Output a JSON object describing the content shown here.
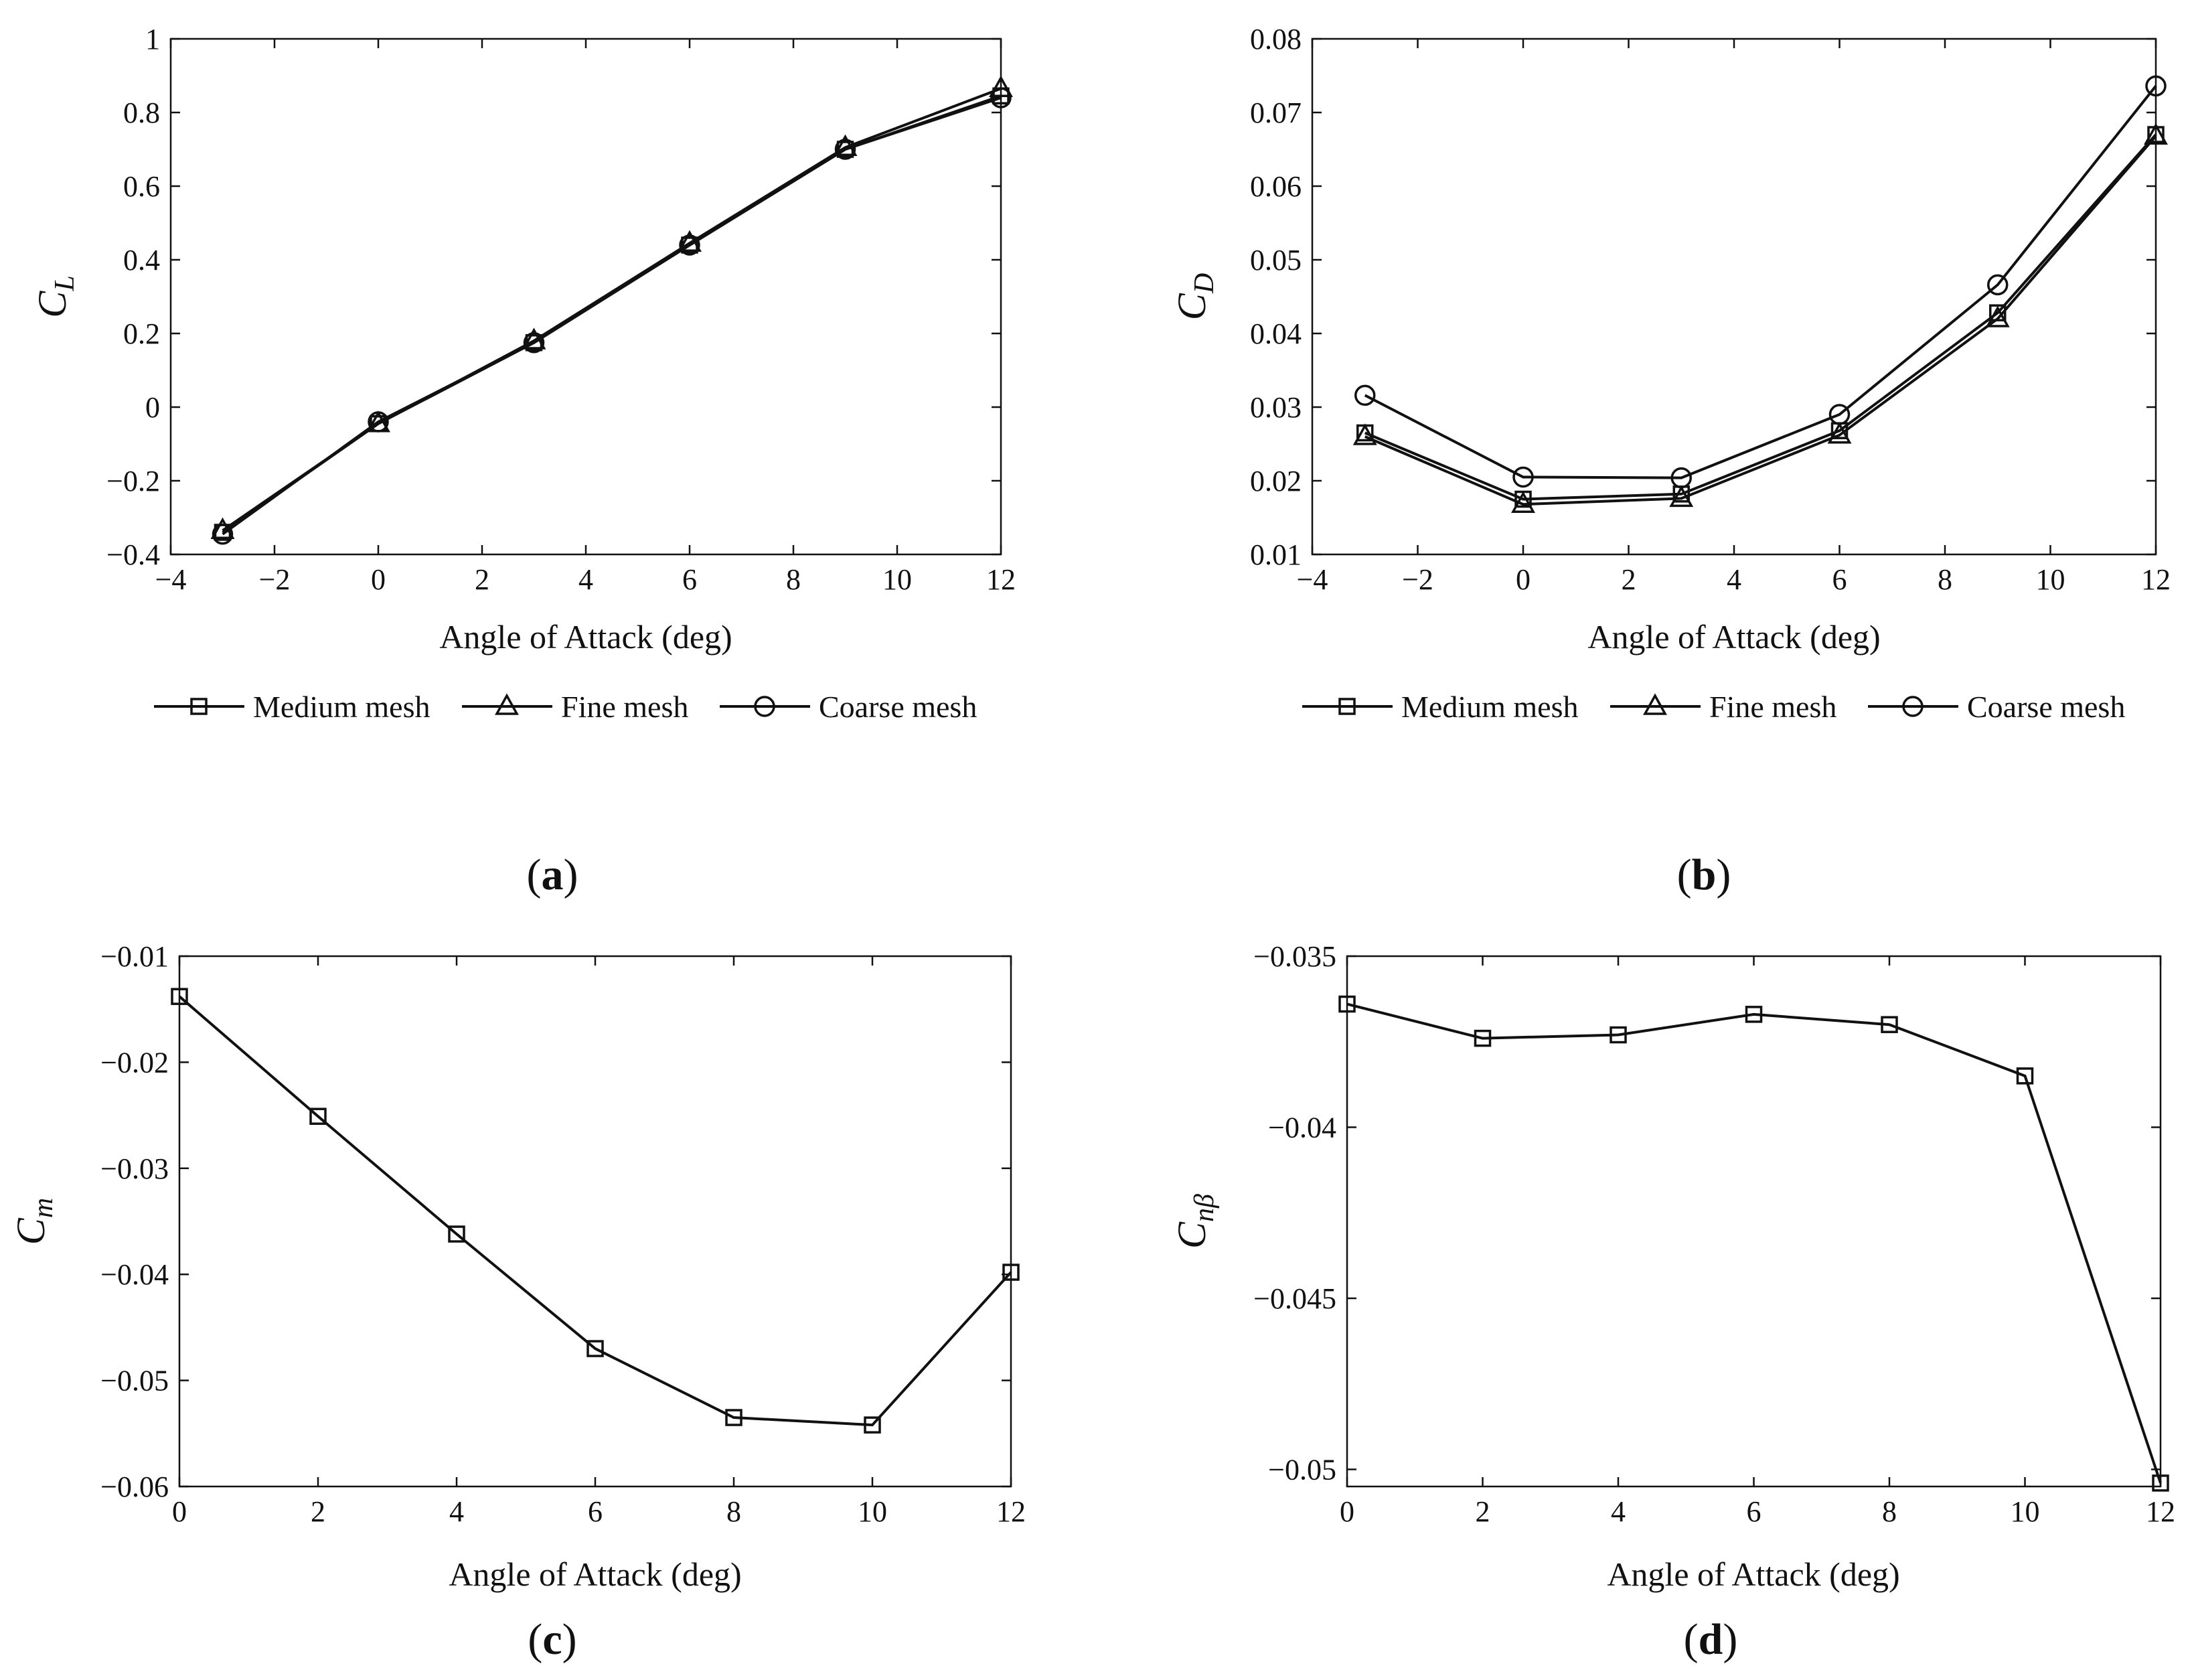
{
  "figure": {
    "panels": [
      {
        "label": "a"
      },
      {
        "label": "b"
      },
      {
        "label": "c"
      },
      {
        "label": "d"
      }
    ]
  },
  "chart_data": [
    {
      "id": "a",
      "type": "line",
      "xlabel": "Angle of Attack (deg)",
      "ylabel": {
        "symbol": "C",
        "subscript": "L"
      },
      "xlim": [
        -4,
        12
      ],
      "ylim": [
        -0.4,
        1
      ],
      "xticks": [
        -4,
        -2,
        0,
        2,
        4,
        6,
        8,
        10,
        12
      ],
      "yticks": [
        -0.4,
        -0.2,
        0,
        0.2,
        0.4,
        0.6,
        0.8,
        1
      ],
      "xtick_labels": [
        "−4",
        "−2",
        "0",
        "2",
        "4",
        "6",
        "8",
        "10",
        "12"
      ],
      "ytick_labels": [
        "−0.4",
        "−0.2",
        "0",
        "0.2",
        "0.4",
        "0.6",
        "0.8",
        "1"
      ],
      "x": [
        -3,
        0,
        3,
        6,
        9,
        12
      ],
      "series": [
        {
          "name": "Medium mesh",
          "marker": "square",
          "values": [
            -0.34,
            -0.045,
            0.175,
            0.44,
            0.7,
            0.845
          ]
        },
        {
          "name": "Fine mesh",
          "marker": "triangle",
          "values": [
            -0.335,
            -0.045,
            0.18,
            0.445,
            0.705,
            0.865
          ]
        },
        {
          "name": "Coarse mesh",
          "marker": "circle",
          "values": [
            -0.345,
            -0.04,
            0.175,
            0.44,
            0.7,
            0.84
          ]
        }
      ],
      "legend_position": "below"
    },
    {
      "id": "b",
      "type": "line",
      "xlabel": "Angle of Attack (deg)",
      "ylabel": {
        "symbol": "C",
        "subscript": "D"
      },
      "xlim": [
        -4,
        12
      ],
      "ylim": [
        0.01,
        0.08
      ],
      "xticks": [
        -4,
        -2,
        0,
        2,
        4,
        6,
        8,
        10,
        12
      ],
      "yticks": [
        0.01,
        0.02,
        0.03,
        0.04,
        0.05,
        0.06,
        0.07,
        0.08
      ],
      "xtick_labels": [
        "−4",
        "−2",
        "0",
        "2",
        "4",
        "6",
        "8",
        "10",
        "12"
      ],
      "ytick_labels": [
        "0.01",
        "0.02",
        "0.03",
        "0.04",
        "0.05",
        "0.06",
        "0.07",
        "0.08"
      ],
      "x": [
        -3,
        0,
        3,
        6,
        9,
        12
      ],
      "series": [
        {
          "name": "Medium mesh",
          "marker": "square",
          "values": [
            0.0265,
            0.0175,
            0.0182,
            0.0268,
            0.0428,
            0.067
          ]
        },
        {
          "name": "Fine mesh",
          "marker": "triangle",
          "values": [
            0.026,
            0.0168,
            0.0176,
            0.0262,
            0.042,
            0.0668
          ]
        },
        {
          "name": "Coarse mesh",
          "marker": "circle",
          "values": [
            0.0316,
            0.0205,
            0.0204,
            0.029,
            0.0466,
            0.0736
          ]
        }
      ],
      "legend_position": "below"
    },
    {
      "id": "c",
      "type": "line",
      "xlabel": "Angle of Attack (deg)",
      "ylabel": {
        "symbol": "C",
        "subscript": "m"
      },
      "xlim": [
        0,
        12
      ],
      "ylim": [
        -0.06,
        -0.01
      ],
      "xticks": [
        0,
        2,
        4,
        6,
        8,
        10,
        12
      ],
      "yticks": [
        -0.06,
        -0.05,
        -0.04,
        -0.03,
        -0.02,
        -0.01
      ],
      "xtick_labels": [
        "0",
        "2",
        "4",
        "6",
        "8",
        "10",
        "12"
      ],
      "ytick_labels": [
        "−0.06",
        "−0.05",
        "−0.04",
        "−0.03",
        "−0.02",
        "−0.01"
      ],
      "x": [
        0,
        2,
        4,
        6,
        8,
        10,
        12
      ],
      "series": [
        {
          "name": "",
          "marker": "square",
          "values": [
            -0.0138,
            -0.0251,
            -0.0362,
            -0.047,
            -0.0535,
            -0.0542,
            -0.0398
          ]
        }
      ]
    },
    {
      "id": "d",
      "type": "line",
      "xlabel": "Angle of Attack (deg)",
      "ylabel": {
        "symbol": "C",
        "subscript": "nβ"
      },
      "xlim": [
        0,
        12
      ],
      "ylim": [
        -0.0505,
        -0.035
      ],
      "xticks": [
        0,
        2,
        4,
        6,
        8,
        10,
        12
      ],
      "yticks": [
        -0.05,
        -0.045,
        -0.04,
        -0.035
      ],
      "xtick_labels": [
        "0",
        "2",
        "4",
        "6",
        "8",
        "10",
        "12"
      ],
      "ytick_labels": [
        "−0.05",
        "−0.045",
        "−0.04",
        "−0.035"
      ],
      "x": [
        0,
        2,
        4,
        6,
        8,
        10,
        12
      ],
      "series": [
        {
          "name": "",
          "marker": "square",
          "values": [
            -0.0364,
            -0.0374,
            -0.0373,
            -0.0367,
            -0.037,
            -0.0385,
            -0.0504
          ]
        }
      ]
    }
  ]
}
